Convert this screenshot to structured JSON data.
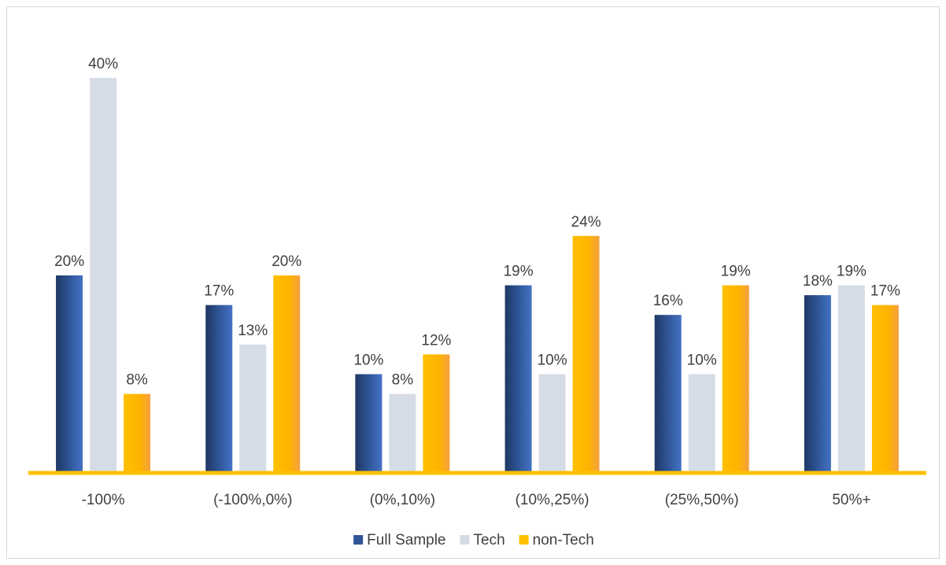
{
  "chart_data": {
    "type": "bar",
    "title": "",
    "xlabel": "",
    "ylabel": "",
    "categories": [
      "-100%",
      "(-100%,0%)",
      "(0%,10%)",
      "(10%,25%)",
      "(25%,50%)",
      "50%+"
    ],
    "series": [
      {
        "name": "Full Sample",
        "values": [
          20,
          17,
          10,
          19,
          16,
          18
        ],
        "labels": [
          "20%",
          "17%",
          "10%",
          "19%",
          "16%",
          "18%"
        ],
        "color": "#2f5597"
      },
      {
        "name": "Tech",
        "values": [
          40,
          13,
          8,
          10,
          10,
          19
        ],
        "labels": [
          "40%",
          "13%",
          "8%",
          "10%",
          "10%",
          "19%"
        ],
        "color": "#d6dce5"
      },
      {
        "name": "non-Tech",
        "values": [
          8,
          20,
          12,
          24,
          19,
          17
        ],
        "labels": [
          "8%",
          "20%",
          "12%",
          "24%",
          "19%",
          "17%"
        ],
        "color": "#ffc000"
      }
    ],
    "ylim": [
      0,
      40
    ],
    "grid": false,
    "legend": "bottom",
    "axis_color": "#ffc000"
  }
}
